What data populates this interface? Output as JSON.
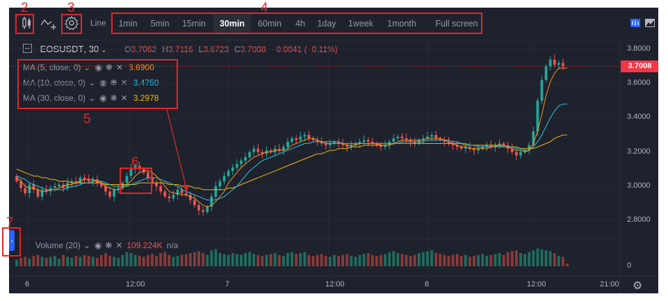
{
  "toolbar": {
    "line_label": "Line",
    "intervals": [
      "1min",
      "5min",
      "15min",
      "30min",
      "60min",
      "4h",
      "1day",
      "1week",
      "1month"
    ],
    "active_interval": "30min",
    "fullscreen_label": "Full screen"
  },
  "symbol": {
    "name": "EOSUSDT",
    "interval": "30",
    "o_label": "O",
    "o": "3.7062",
    "h_label": "H",
    "h": "3.7116",
    "l_label": "L",
    "l": "3.6723",
    "c_label": "C",
    "c": "3.7008",
    "change": "−0.0041 (−0.11%)"
  },
  "indicators": [
    {
      "label": "MA (5, close, 0)",
      "value": "3.6900",
      "color": "#f7931a"
    },
    {
      "label": "MA (10, close, 0)",
      "value": "3.4750",
      "color": "#2ec4e6"
    },
    {
      "label": "MA (30, close, 0)",
      "value": "3.2978",
      "color": "#f0b90b"
    }
  ],
  "volume": {
    "label": "Volume (20)",
    "value": "109.224K",
    "na": "n/a"
  },
  "price_axis": {
    "ticks": [
      "3.8000",
      "3.6000",
      "3.4000",
      "3.2000",
      "3.0000",
      "2.8000"
    ],
    "volume_tick": "0",
    "current": "3.7008",
    "current_color": "#f23645"
  },
  "time_axis": {
    "ticks": [
      "6",
      "12:00",
      "7",
      "12:00",
      "8",
      "12:00",
      "21:00"
    ]
  },
  "colors": {
    "up": "#26a69a",
    "down": "#ef5350",
    "bg": "#1e222d",
    "annotation": "#e3262b"
  },
  "annotations": [
    "2",
    "3",
    "4",
    "5",
    "6",
    "7"
  ],
  "chart_data": {
    "type": "candlestick",
    "ylim": [
      2.72,
      3.84
    ],
    "closes": [
      3.03,
      2.99,
      2.96,
      3.01,
      2.98,
      2.94,
      2.98,
      2.97,
      2.99,
      3.0,
      3.01,
      2.99,
      3.02,
      3.03,
      3.02,
      3.05,
      3.04,
      3.03,
      3.04,
      3.02,
      3.0,
      2.97,
      2.94,
      2.98,
      2.99,
      3.02,
      3.06,
      3.1,
      3.12,
      3.1,
      3.08,
      3.05,
      3.02,
      3.0,
      2.97,
      2.94,
      2.93,
      2.95,
      2.98,
      2.96,
      2.95,
      2.92,
      2.89,
      2.86,
      2.85,
      2.88,
      2.94,
      3.0,
      3.03,
      3.06,
      3.09,
      3.11,
      3.13,
      3.15,
      3.17,
      3.2,
      3.22,
      3.2,
      3.19,
      3.21,
      3.2,
      3.22,
      3.21,
      3.23,
      3.26,
      3.28,
      3.27,
      3.29,
      3.3,
      3.28,
      3.27,
      3.26,
      3.25,
      3.24,
      3.25,
      3.26,
      3.25,
      3.24,
      3.23,
      3.24,
      3.25,
      3.26,
      3.27,
      3.26,
      3.25,
      3.24,
      3.23,
      3.24,
      3.26,
      3.28,
      3.29,
      3.28,
      3.27,
      3.26,
      3.25,
      3.27,
      3.28,
      3.29,
      3.3,
      3.28,
      3.27,
      3.26,
      3.25,
      3.24,
      3.23,
      3.22,
      3.23,
      3.22,
      3.21,
      3.22,
      3.23,
      3.24,
      3.23,
      3.24,
      3.25,
      3.24,
      3.22,
      3.2,
      3.18,
      3.2,
      3.21,
      3.24,
      3.32,
      3.5,
      3.62,
      3.7,
      3.74,
      3.71,
      3.72,
      3.7
    ],
    "ma5": [
      3.05,
      3.03,
      3.0,
      2.99,
      2.99,
      2.98,
      2.97,
      2.97,
      2.98,
      2.98,
      2.99,
      3.0,
      3.01,
      3.01,
      3.02,
      3.03,
      3.04,
      3.04,
      3.04,
      3.03,
      3.02,
      3.0,
      2.99,
      2.98,
      2.98,
      2.99,
      3.01,
      3.03,
      3.06,
      3.08,
      3.09,
      3.09,
      3.08,
      3.06,
      3.03,
      3.0,
      2.97,
      2.96,
      2.96,
      2.95,
      2.95,
      2.94,
      2.93,
      2.91,
      2.89,
      2.88,
      2.89,
      2.91,
      2.94,
      2.97,
      3.02,
      3.05,
      3.08,
      3.11,
      3.13,
      3.15,
      3.17,
      3.18,
      3.19,
      3.2,
      3.2,
      3.21,
      3.21,
      3.21,
      3.22,
      3.24,
      3.25,
      3.26,
      3.27,
      3.28,
      3.28,
      3.27,
      3.26,
      3.25,
      3.25,
      3.25,
      3.25,
      3.25,
      3.24,
      3.24,
      3.24,
      3.25,
      3.25,
      3.25,
      3.25,
      3.25,
      3.24,
      3.24,
      3.24,
      3.25,
      3.26,
      3.27,
      3.27,
      3.27,
      3.27,
      3.27,
      3.27,
      3.28,
      3.28,
      3.28,
      3.28,
      3.27,
      3.26,
      3.25,
      3.24,
      3.23,
      3.23,
      3.22,
      3.22,
      3.22,
      3.22,
      3.22,
      3.23,
      3.23,
      3.24,
      3.24,
      3.23,
      3.22,
      3.21,
      3.21,
      3.2,
      3.21,
      3.25,
      3.32,
      3.42,
      3.53,
      3.61,
      3.66,
      3.69,
      3.69,
      3.69
    ],
    "ma10": [
      3.06,
      3.05,
      3.04,
      3.02,
      3.01,
      3.0,
      2.99,
      2.98,
      2.98,
      2.98,
      2.98,
      2.98,
      2.99,
      3.0,
      3.0,
      3.01,
      3.02,
      3.02,
      3.03,
      3.03,
      3.03,
      3.02,
      3.01,
      3.0,
      3.0,
      3.0,
      3.0,
      3.01,
      3.02,
      3.03,
      3.04,
      3.05,
      3.05,
      3.05,
      3.04,
      3.03,
      3.02,
      3.01,
      3.0,
      2.98,
      2.97,
      2.96,
      2.95,
      2.94,
      2.93,
      2.92,
      2.92,
      2.92,
      2.93,
      2.94,
      2.96,
      2.98,
      3.0,
      3.03,
      3.06,
      3.09,
      3.11,
      3.13,
      3.15,
      3.16,
      3.17,
      3.18,
      3.19,
      3.2,
      3.21,
      3.22,
      3.23,
      3.24,
      3.25,
      3.25,
      3.26,
      3.26,
      3.26,
      3.26,
      3.26,
      3.26,
      3.26,
      3.25,
      3.25,
      3.25,
      3.25,
      3.25,
      3.25,
      3.25,
      3.25,
      3.25,
      3.25,
      3.25,
      3.25,
      3.25,
      3.25,
      3.26,
      3.26,
      3.26,
      3.26,
      3.26,
      3.26,
      3.27,
      3.27,
      3.27,
      3.27,
      3.27,
      3.27,
      3.26,
      3.26,
      3.25,
      3.25,
      3.24,
      3.24,
      3.23,
      3.23,
      3.23,
      3.23,
      3.23,
      3.23,
      3.23,
      3.23,
      3.23,
      3.22,
      3.22,
      3.21,
      3.21,
      3.23,
      3.26,
      3.3,
      3.35,
      3.4,
      3.44,
      3.47,
      3.48,
      3.48
    ],
    "ma30": [
      3.1,
      3.09,
      3.08,
      3.07,
      3.06,
      3.06,
      3.05,
      3.05,
      3.04,
      3.04,
      3.03,
      3.03,
      3.03,
      3.02,
      3.02,
      3.02,
      3.02,
      3.02,
      3.02,
      3.02,
      3.02,
      3.01,
      3.01,
      3.01,
      3.01,
      3.01,
      3.01,
      3.01,
      3.01,
      3.02,
      3.02,
      3.02,
      3.02,
      3.02,
      3.02,
      3.02,
      3.01,
      3.01,
      3.01,
      3.0,
      3.0,
      3.0,
      2.99,
      2.99,
      2.98,
      2.98,
      2.98,
      2.98,
      2.98,
      2.98,
      2.99,
      2.99,
      3.0,
      3.01,
      3.02,
      3.03,
      3.04,
      3.05,
      3.06,
      3.07,
      3.08,
      3.09,
      3.1,
      3.11,
      3.12,
      3.13,
      3.14,
      3.15,
      3.16,
      3.17,
      3.18,
      3.19,
      3.19,
      3.2,
      3.21,
      3.21,
      3.22,
      3.22,
      3.22,
      3.23,
      3.23,
      3.23,
      3.24,
      3.24,
      3.24,
      3.24,
      3.24,
      3.24,
      3.24,
      3.25,
      3.25,
      3.25,
      3.25,
      3.25,
      3.25,
      3.25,
      3.25,
      3.25,
      3.25,
      3.25,
      3.25,
      3.25,
      3.25,
      3.25,
      3.25,
      3.25,
      3.24,
      3.24,
      3.24,
      3.24,
      3.24,
      3.24,
      3.24,
      3.24,
      3.24,
      3.23,
      3.23,
      3.23,
      3.23,
      3.22,
      3.22,
      3.22,
      3.22,
      3.23,
      3.24,
      3.25,
      3.26,
      3.28,
      3.29,
      3.3,
      3.3
    ],
    "volume": [
      0.35,
      0.45,
      0.5,
      0.4,
      0.55,
      0.6,
      0.5,
      0.45,
      0.5,
      0.55,
      0.4,
      0.6,
      0.5,
      0.45,
      0.55,
      0.5,
      0.6,
      0.55,
      0.5,
      0.45,
      0.6,
      0.7,
      0.55,
      0.5,
      0.45,
      0.6,
      0.75,
      0.7,
      0.6,
      0.55,
      0.5,
      0.6,
      0.65,
      0.55,
      0.7,
      0.75,
      0.6,
      0.5,
      0.55,
      0.6,
      0.65,
      0.7,
      0.75,
      0.8,
      0.7,
      0.6,
      0.85,
      0.9,
      0.7,
      0.65,
      0.6,
      0.7,
      0.65,
      0.6,
      0.7,
      0.75,
      0.65,
      0.6,
      0.55,
      0.6,
      0.65,
      0.7,
      0.6,
      0.55,
      0.7,
      0.75,
      0.65,
      0.7,
      0.75,
      0.6,
      0.55,
      0.6,
      0.65,
      0.55,
      0.5,
      0.6,
      0.55,
      0.6,
      0.65,
      0.55,
      0.5,
      0.6,
      0.65,
      0.7,
      0.6,
      0.55,
      0.6,
      0.65,
      0.75,
      0.8,
      0.7,
      0.65,
      0.6,
      0.55,
      0.6,
      0.7,
      0.75,
      0.8,
      0.85,
      0.7,
      0.65,
      0.6,
      0.55,
      0.6,
      0.65,
      0.55,
      0.6,
      0.5,
      0.55,
      0.6,
      0.65,
      0.55,
      0.6,
      0.65,
      0.7,
      0.6,
      0.75,
      0.8,
      0.85,
      0.7,
      0.65,
      0.75,
      0.85,
      0.95,
      0.9,
      0.85,
      0.8,
      0.7,
      0.55,
      0.5,
      0.15
    ]
  }
}
